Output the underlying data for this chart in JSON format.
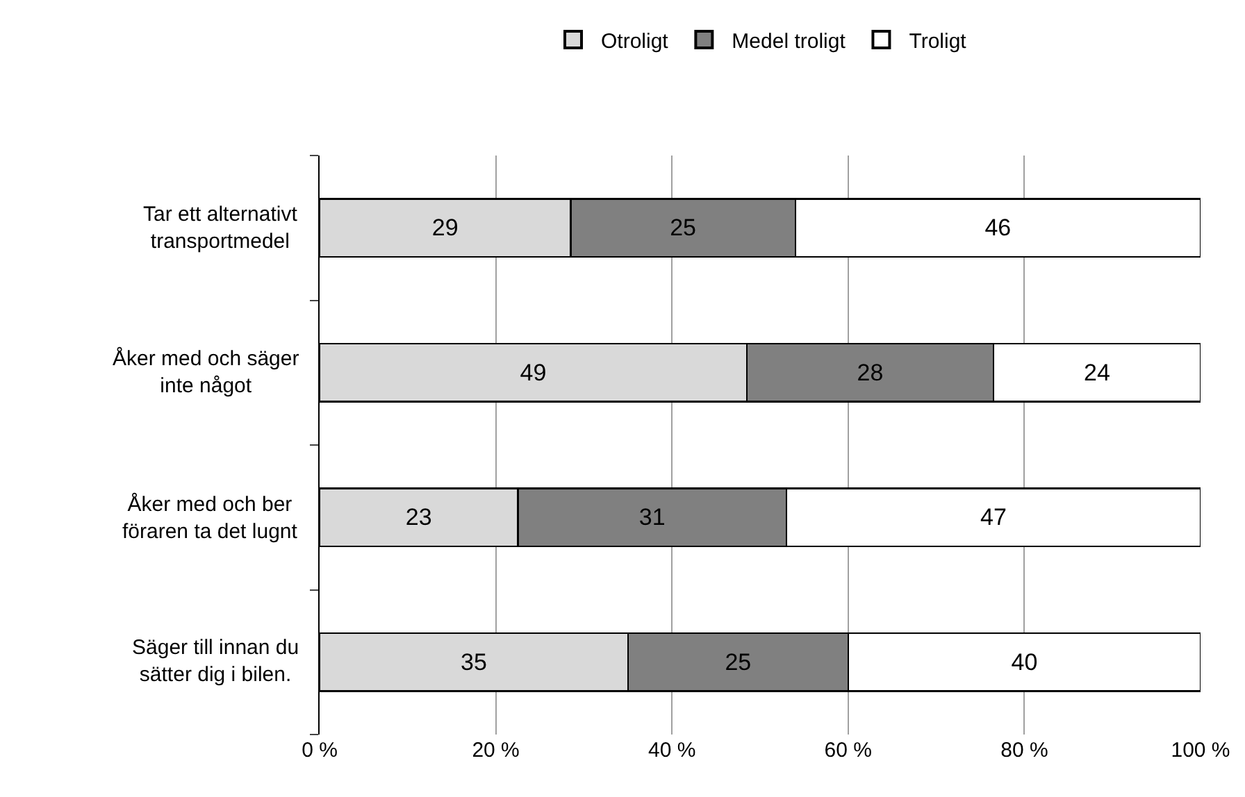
{
  "chart_data": {
    "type": "bar",
    "orientation": "horizontal",
    "stacked": true,
    "categories": [
      "Tar ett alternativt\ntransportmedel",
      "Åker med och säger\ninte något",
      "Åker med och ber\nföraren ta det lugnt",
      "Säger till innan du\nsätter dig i bilen."
    ],
    "series": [
      {
        "name": "Otroligt",
        "color": "#d9d9d9",
        "values": [
          28.5,
          48.5,
          22.5,
          35
        ],
        "value_labels": [
          "29",
          "49",
          "23",
          "35"
        ]
      },
      {
        "name": "Medel troligt",
        "color": "#808080",
        "values": [
          25.5,
          28,
          30.5,
          25
        ],
        "value_labels": [
          "25",
          "28",
          "31",
          "25"
        ]
      },
      {
        "name": "Troligt",
        "color": "#ffffff",
        "values": [
          46,
          23.5,
          47,
          40
        ],
        "value_labels": [
          "46",
          "24",
          "47",
          "40"
        ]
      }
    ],
    "xlim": [
      0,
      100
    ],
    "xticks": [
      {
        "value": 0,
        "label": "0 %"
      },
      {
        "value": 20,
        "label": "20 %"
      },
      {
        "value": 40,
        "label": "40 %"
      },
      {
        "value": 60,
        "label": "60 %"
      },
      {
        "value": 80,
        "label": "80 %"
      },
      {
        "value": 100,
        "label": "100 %"
      }
    ],
    "grid": "x",
    "legend": "top"
  }
}
